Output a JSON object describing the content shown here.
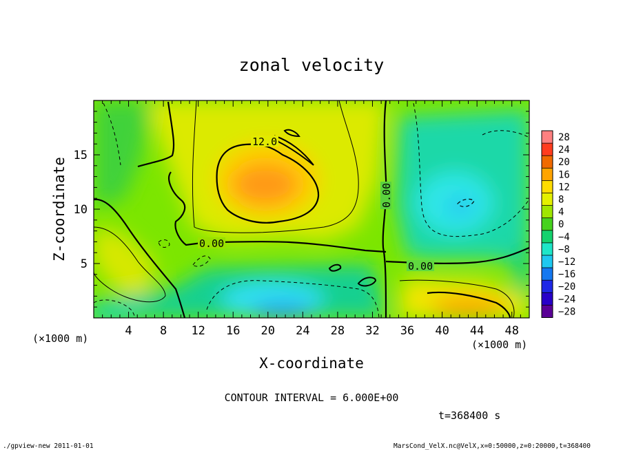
{
  "chart_data": {
    "type": "heatmap",
    "title": "zonal velocity",
    "xlabel": "X-coordinate",
    "ylabel": "Z-coordinate",
    "x_unit_label": "(×1000 m)",
    "y_unit_label": "(×1000 m)",
    "xlim": [
      0,
      50
    ],
    "ylim": [
      0,
      20
    ],
    "x_ticks": [
      4,
      8,
      12,
      16,
      20,
      24,
      28,
      32,
      36,
      40,
      44,
      48
    ],
    "y_ticks": [
      5,
      10,
      15
    ],
    "color_scale": {
      "levels": [
        28,
        24,
        20,
        16,
        12,
        8,
        4,
        0,
        -4,
        -8,
        -12,
        -16,
        -20,
        -24,
        -28
      ],
      "colors": [
        "#ff8080",
        "#ff3c1e",
        "#f06a00",
        "#ffa400",
        "#ffdc00",
        "#e4f000",
        "#a0e600",
        "#46d21e",
        "#14d26e",
        "#1ee6c8",
        "#1ec8f0",
        "#1478f0",
        "#1e28e6",
        "#2800c8",
        "#5a0096"
      ]
    },
    "contour_interval": "CONTOUR INTERVAL = 6.000E+00",
    "contour_labels": [
      "12.0",
      "0.00",
      "0.00",
      "0.00"
    ],
    "time_label": "t=368400 s",
    "fields": [
      {
        "name": "jet core",
        "x": 20,
        "z": 12.5,
        "value": 16
      },
      {
        "name": "lower right maximum",
        "x": 43.5,
        "z": 1.0,
        "value": 14
      },
      {
        "name": "lower center minimum",
        "x": 22,
        "z": 1.0,
        "value": -11
      },
      {
        "name": "right negative cell",
        "x": 42,
        "z": 10,
        "value": -9
      }
    ]
  },
  "footer": {
    "left": "./gpview-new  2011-01-01",
    "right": "MarsCond_VelX.nc@VelX,x=0:50000,z=0:20000,t=368400"
  }
}
